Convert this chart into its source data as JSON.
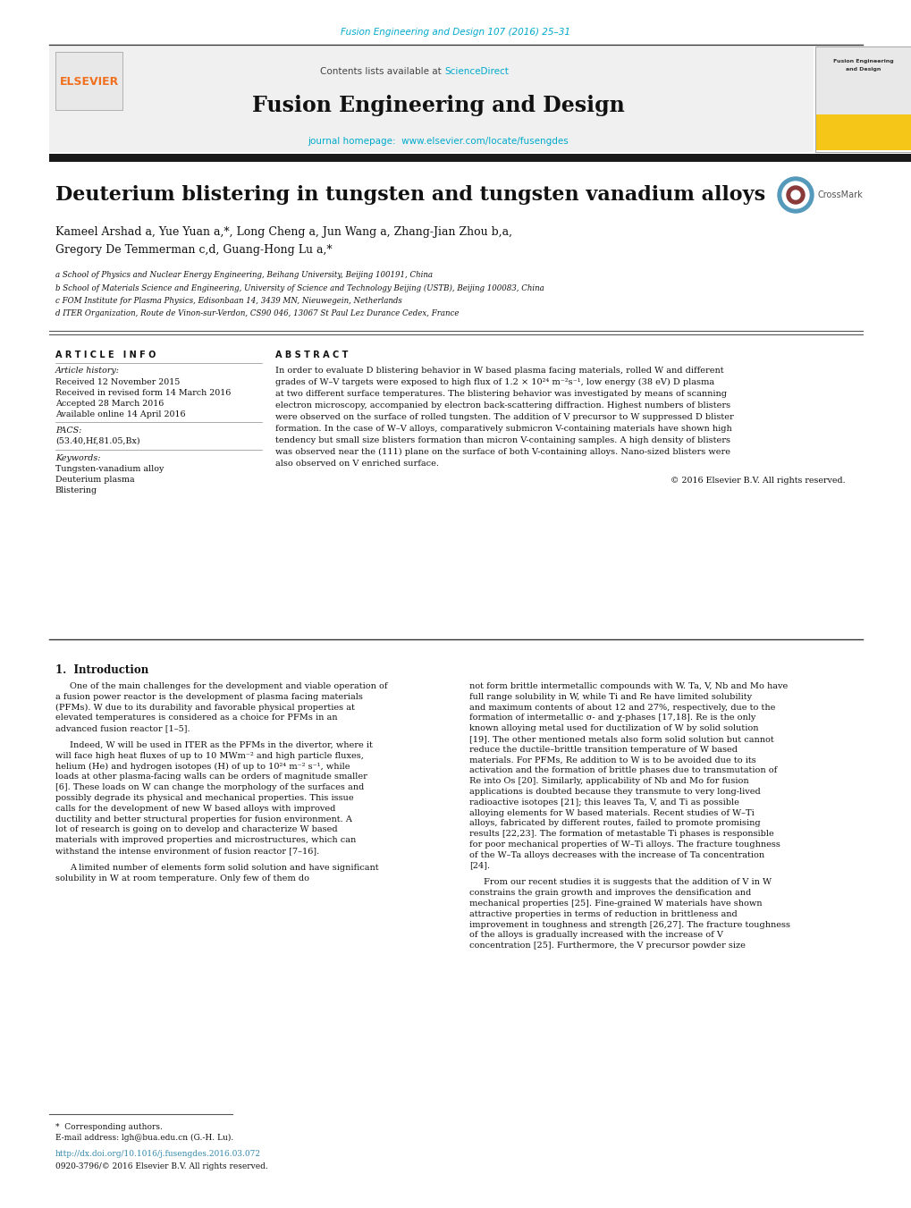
{
  "page_width": 10.2,
  "page_height": 13.51,
  "bg_color": "#ffffff",
  "top_citation": "Fusion Engineering and Design 107 (2016) 25–31",
  "top_citation_color": "#00aacc",
  "header_bg": "#f0f0f0",
  "header_text": "Fusion Engineering and Design",
  "contents_text": "Contents lists available at ",
  "sciencedirect_text": "ScienceDirect",
  "sciencedirect_color": "#00aacc",
  "journal_url": "www.elsevier.com/locate/fusengdes",
  "journal_url_color": "#00aacc",
  "elsevier_color": "#f07020",
  "black_bar_color": "#222222",
  "paper_title": "Deuterium blistering in tungsten and tungsten vanadium alloys",
  "authors_line1": "Kameel Arshad a, Yue Yuan a,*, Long Cheng a, Jun Wang a, Zhang-Jian Zhou b,a,",
  "authors_line2": "Gregory De Temmerman c,d, Guang-Hong Lu a,*",
  "affil_a": "a School of Physics and Nuclear Energy Engineering, Beihang University, Beijing 100191, China",
  "affil_b": "b School of Materials Science and Engineering, University of Science and Technology Beijing (USTB), Beijing 100083, China",
  "affil_c": "c FOM Institute for Plasma Physics, Edisonbaan 14, 3439 MN, Nieuwegein, Netherlands",
  "affil_d": "d ITER Organization, Route de Vinon-sur-Verdon, CS90 046, 13067 St Paul Lez Durance Cedex, France",
  "article_info_title": "A R T I C L E   I N F O",
  "abstract_title": "A B S T R A C T",
  "article_history_label": "Article history:",
  "received_1": "Received 12 November 2015",
  "received_revised": "Received in revised form 14 March 2016",
  "accepted": "Accepted 28 March 2016",
  "available": "Available online 14 April 2016",
  "pacs_label": "PACS:",
  "pacs_codes": "(53.40,Hf,81.05,Bx)",
  "keywords_label": "Keywords:",
  "keyword1": "Tungsten-vanadium alloy",
  "keyword2": "Deuterium plasma",
  "keyword3": "Blistering",
  "abstract_lines": [
    "In order to evaluate D blistering behavior in W based plasma facing materials, rolled W and different",
    "grades of W–V targets were exposed to high flux of 1.2 × 10²⁴ m⁻²s⁻¹, low energy (38 eV) D plasma",
    "at two different surface temperatures. The blistering behavior was investigated by means of scanning",
    "electron microscopy, accompanied by electron back-scattering diffraction. Highest numbers of blisters",
    "were observed on the surface of rolled tungsten. The addition of V precursor to W suppressed D blister",
    "formation. In the case of W–V alloys, comparatively submicron V-containing materials have shown high",
    "tendency but small size blisters formation than micron V-containing samples. A high density of blisters",
    "was observed near the (111) plane on the surface of both V-containing alloys. Nano-sized blisters were",
    "also observed on V enriched surface."
  ],
  "copyright": "© 2016 Elsevier B.V. All rights reserved.",
  "section1_title": "1.  Introduction",
  "intro_col1_para1": "One of the main challenges for the development and viable operation of a fusion power reactor is the development of plasma facing materials (PFMs). W due to its durability and favorable physical properties at elevated temperatures is considered as a choice for PFMs in an advanced fusion reactor [1–5].",
  "intro_col1_para2": "Indeed, W will be used in ITER as the PFMs in the divertor, where it will face high heat fluxes of up to 10 MWm⁻² and high particle fluxes, helium (He) and hydrogen isotopes (H) of up to 10²⁴ m⁻² s⁻¹, while loads at other plasma-facing walls can be orders of magnitude smaller [6]. These loads on W can change the morphology of the surfaces and possibly degrade its physical and mechanical properties. This issue calls for the development of new W based alloys with improved ductility and better structural properties for fusion environment. A lot of research is going on to develop and characterize W based materials with improved properties and microstructures, which can withstand the intense environment of fusion reactor [7–16].",
  "intro_col1_para3": "A limited number of elements form solid solution and have significant solubility in W at room temperature. Only few of them do",
  "intro_col2_para1": "not form brittle intermetallic compounds with W. Ta, V, Nb and Mo have full range solubility in W, while Ti and Re have limited solubility and maximum contents of about 12 and 27%, respectively, due to the formation of intermetallic σ- and χ-phases [17,18]. Re is the only known alloying metal used for ductilization of W by solid solution [19]. The other mentioned metals also form solid solution but cannot reduce the ductile–brittle transition temperature of W based materials. For PFMs, Re addition to W is to be avoided due to its activation and the formation of brittle phases due to transmutation of Re into Os [20]. Similarly, applicability of Nb and Mo for fusion applications is doubted because they transmute to very long-lived radioactive isotopes [21]; this leaves Ta, V, and Ti as possible alloying elements for W based materials. Recent studies of W–Ti alloys, fabricated by different routes, failed to promote promising results [22,23]. The formation of metastable Ti phases is responsible for poor mechanical properties of W–Ti alloys. The fracture toughness of the W–Ta alloys decreases with the increase of Ta concentration [24].",
  "intro_col2_para2": "From our recent studies it is suggests that the addition of V in W constrains the grain growth and improves the densification and mechanical properties [25]. Fine-grained W materials have shown attractive properties in terms of reduction in brittleness and improvement in toughness and strength [26,27]. The fracture toughness of the alloys is gradually increased with the increase of V concentration [25]. Furthermore, the V precursor powder size",
  "footnote_star": "*  Corresponding authors.",
  "footnote_email": "E-mail address: lgh@bua.edu.cn (G.-H. Lu).",
  "doi_text": "http://dx.doi.org/10.1016/j.fusengdes.2016.03.072",
  "copyright_footer": "0920-3796/© 2016 Elsevier B.V. All rights reserved."
}
